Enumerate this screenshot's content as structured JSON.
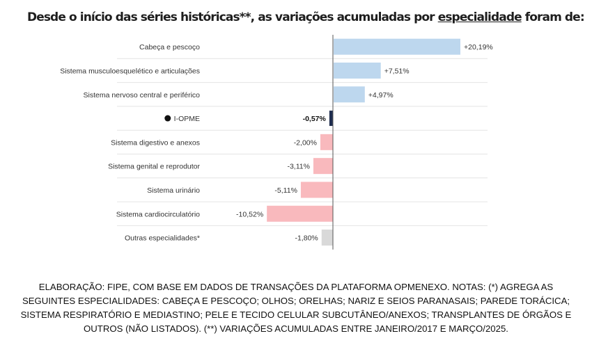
{
  "title": {
    "prefix": "Desde o início das séries históricas**, as variações acumuladas por ",
    "underlined": "especialidade",
    "suffix": " foram de:"
  },
  "chart_data": {
    "type": "bar",
    "orientation": "horizontal",
    "categories": [
      "Cabeça e pescoço",
      "Sistema musculoesquelético e articulações",
      "Sistema nervoso central e periférico",
      "I-OPME",
      "Sistema digestivo e anexos",
      "Sistema genital e reprodutor",
      "Sistema urinário",
      "Sistema cardiocirculatório",
      "Outras especialidades*"
    ],
    "values": [
      20.19,
      7.51,
      4.97,
      -0.57,
      -2.0,
      -3.11,
      -5.11,
      -10.52,
      -1.8
    ],
    "value_labels": [
      "+20,19%",
      "+7,51%",
      "+4,97%",
      "-0,57%",
      "-2,00%",
      "-3,11%",
      "-5,11%",
      "-10,52%",
      "-1,80%"
    ],
    "highlight": "I-OPME",
    "xlim": [
      -11,
      20.19
    ],
    "grid": false,
    "colors": {
      "positive": "#bdd7ee",
      "negative": "#f9b9bd",
      "highlight": "#1f2d4f",
      "other": "#d9d9d9",
      "separator": "#e4e4e4",
      "axis": "#555555"
    }
  },
  "footnote": "ELABORAÇÃO: FIPE, COM BASE EM DADOS DE TRANSAÇÕES DA PLATAFORMA OPMENEXO. NOTAS: (*) AGREGA AS SEGUINTES ESPECIALIDADES: CABEÇA E PESCOÇO; OLHOS; ORELHAS; NARIZ E SEIOS PARANASAIS; PAREDE TORÁCICA; SISTEMA RESPIRATÓRIO E MEDIASTINO; PELE E TECIDO CELULAR SUBCUTÂNEO/ANEXOS; TRANSPLANTES DE ÓRGÃOS E OUTROS (NÃO LISTADOS). (**) VARIAÇÕES ACUMULADAS ENTRE JANEIRO/2017 E MARÇO/2025."
}
